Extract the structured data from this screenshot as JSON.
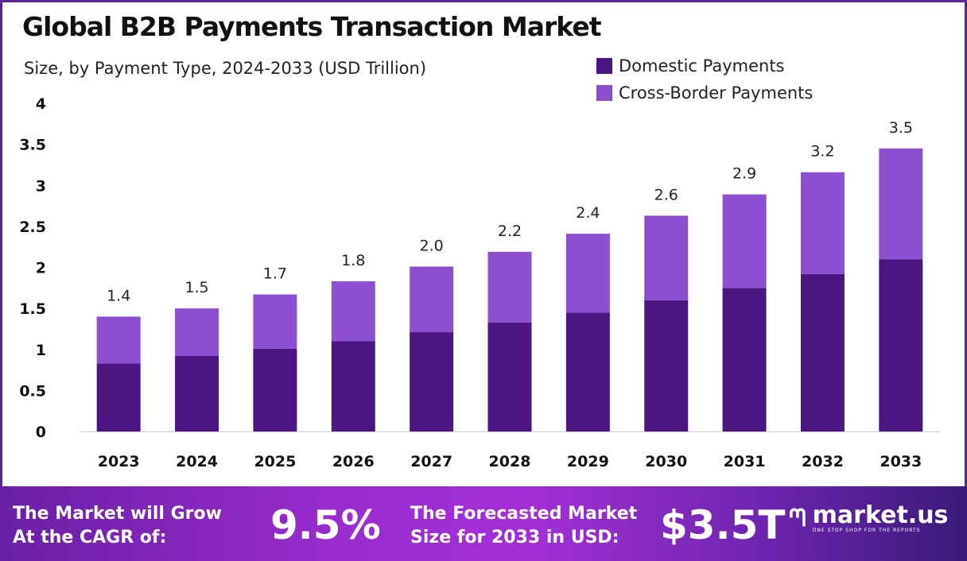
{
  "chart_data": {
    "type": "bar",
    "stacked": true,
    "title": "Global B2B Payments Transaction Market",
    "subtitle": "Size, by Payment Type, 2024-2033 (USD Trillion)",
    "categories": [
      "2023",
      "2024",
      "2025",
      "2026",
      "2027",
      "2028",
      "2029",
      "2030",
      "2031",
      "2032",
      "2033"
    ],
    "series": [
      {
        "name": "Domestic Payments",
        "color": "#4b1582",
        "values": [
          0.83,
          0.92,
          1.01,
          1.1,
          1.21,
          1.33,
          1.45,
          1.6,
          1.75,
          1.92,
          2.1
        ]
      },
      {
        "name": "Cross-Border Payments",
        "color": "#8d4fd2",
        "values": [
          0.57,
          0.58,
          0.66,
          0.73,
          0.8,
          0.86,
          0.96,
          1.03,
          1.14,
          1.24,
          1.35
        ]
      }
    ],
    "totals": [
      "1.4",
      "1.5",
      "1.7",
      "1.8",
      "2.0",
      "2.2",
      "2.4",
      "2.6",
      "2.9",
      "3.2",
      "3.5"
    ],
    "total_values": [
      1.4,
      1.5,
      1.67,
      1.83,
      2.01,
      2.19,
      2.41,
      2.63,
      2.89,
      3.16,
      3.45
    ],
    "yticks": [
      "0",
      "0.5",
      "1",
      "1.5",
      "2",
      "2.5",
      "3",
      "3.5",
      "4"
    ],
    "ylim": [
      0,
      4
    ],
    "grid": false,
    "legend": "top-right"
  },
  "footer": {
    "cagr_label_1": "The Market will Grow",
    "cagr_label_2": "At the CAGR of:",
    "cagr_value": "9.5%",
    "forecast_label_1": "The Forecasted Market",
    "forecast_label_2": "Size for 2033 in USD:",
    "forecast_value": "$3.5T",
    "brand": "market.us",
    "brand_tagline": "ONE STOP SHOP FOR THE REPORTS"
  }
}
